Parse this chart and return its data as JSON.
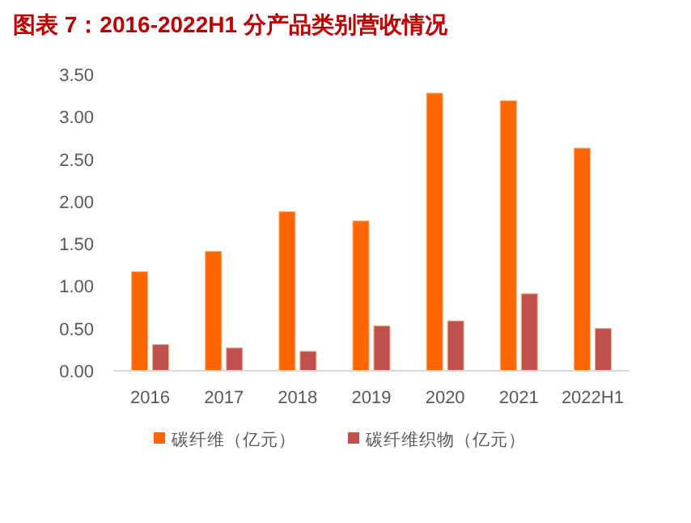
{
  "chart_data": {
    "type": "bar",
    "title": "图表 7：2016-2022H1 分产品类别营收情况",
    "categories": [
      "2016",
      "2017",
      "2018",
      "2019",
      "2020",
      "2021",
      "2022H1"
    ],
    "series": [
      {
        "name": "碳纤维（亿元）",
        "color": "#ff6600",
        "values": [
          1.17,
          1.41,
          1.88,
          1.77,
          3.28,
          3.19,
          2.63
        ]
      },
      {
        "name": "碳纤维织物（亿元）",
        "color": "#c0504d",
        "values": [
          0.31,
          0.27,
          0.23,
          0.53,
          0.59,
          0.91,
          0.5
        ]
      }
    ],
    "ylim": [
      0,
      3.5
    ],
    "yticks": [
      {
        "value": 0,
        "label": "0.00"
      },
      {
        "value": 0.5,
        "label": "0.50"
      },
      {
        "value": 1,
        "label": "1.00"
      },
      {
        "value": 1.5,
        "label": "1.50"
      },
      {
        "value": 2,
        "label": "2.00"
      },
      {
        "value": 2.5,
        "label": "2.50"
      },
      {
        "value": 3,
        "label": "3.00"
      },
      {
        "value": 3.5,
        "label": "3.50"
      }
    ],
    "grid": false,
    "legend": "bottom"
  }
}
